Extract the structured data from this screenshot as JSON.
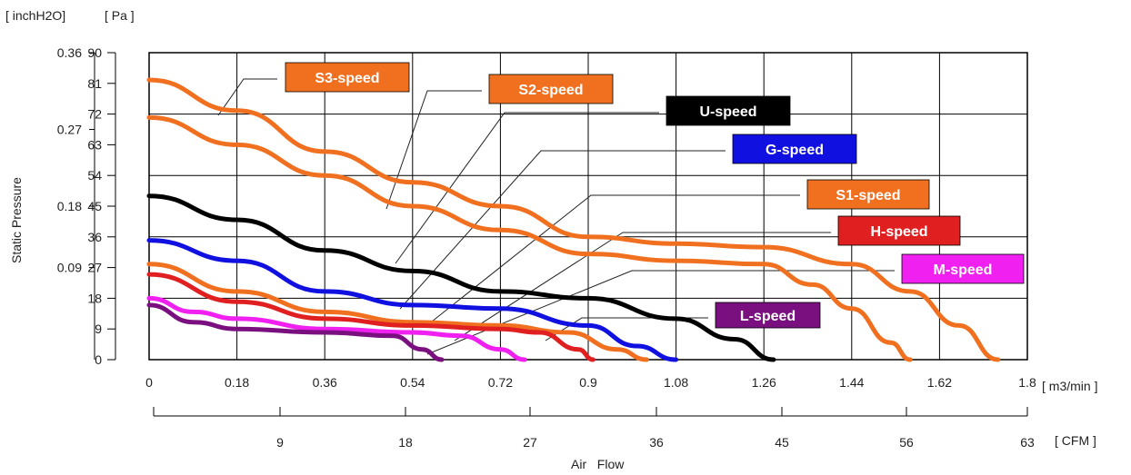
{
  "chart_data": {
    "type": "line",
    "ylabel": "Static Pressure",
    "xlabel": "Air   Flow",
    "y_unit_left": "[ inchH2O]",
    "y_unit_right": "[ Pa ]",
    "x_unit_top": "[ m3/min ]",
    "x_unit_bottom": "[ CFM ]",
    "xlim": [
      0,
      1.8
    ],
    "ylim": [
      0,
      90
    ],
    "grid": true,
    "x_ticks": [
      "0",
      "0.18",
      "0.36",
      "0.54",
      "0.72",
      "0.9",
      "1.08",
      "1.26",
      "1.44",
      "1.62",
      "1.8"
    ],
    "pa_ticks": [
      "0",
      "9",
      "18",
      "27",
      "36",
      "45",
      "54",
      "63",
      "72",
      "81",
      "90"
    ],
    "inh2o_ticks": [
      "0.09",
      "0.18",
      "0.27",
      "0.36"
    ],
    "cfm_ticks": [
      "9",
      "18",
      "27",
      "36",
      "45",
      "56",
      "63"
    ],
    "series": [
      {
        "name": "S3-speed",
        "color": "#f07020",
        "x": [
          0,
          0.18,
          0.36,
          0.54,
          0.72,
          0.9,
          1.08,
          1.26,
          1.44,
          1.56,
          1.66,
          1.74
        ],
        "y": [
          82,
          73,
          61,
          52,
          45,
          36,
          34,
          33,
          28,
          20,
          10,
          0
        ]
      },
      {
        "name": "S2-speed",
        "color": "#f07020",
        "x": [
          0,
          0.18,
          0.36,
          0.54,
          0.72,
          0.9,
          1.08,
          1.26,
          1.36,
          1.44,
          1.52,
          1.56
        ],
        "y": [
          71,
          63,
          54,
          45,
          38,
          31,
          29,
          28,
          22,
          15,
          5,
          0
        ]
      },
      {
        "name": "U-speed",
        "color": "#000000",
        "x": [
          0,
          0.18,
          0.36,
          0.54,
          0.72,
          0.9,
          1.08,
          1.2,
          1.28
        ],
        "y": [
          48,
          41,
          32,
          26,
          20,
          18,
          12,
          6,
          0
        ]
      },
      {
        "name": "G-speed",
        "color": "#1010e0",
        "x": [
          0,
          0.18,
          0.36,
          0.54,
          0.72,
          0.9,
          1.0,
          1.08
        ],
        "y": [
          35,
          29,
          20,
          16,
          15,
          10,
          4,
          0
        ]
      },
      {
        "name": "S1-speed",
        "color": "#f07020",
        "x": [
          0,
          0.18,
          0.36,
          0.54,
          0.72,
          0.86,
          0.96,
          1.02
        ],
        "y": [
          28,
          20,
          14,
          11,
          10,
          8,
          3,
          0
        ]
      },
      {
        "name": "H-speed",
        "color": "#e02020",
        "x": [
          0,
          0.18,
          0.36,
          0.54,
          0.72,
          0.8,
          0.88,
          0.91
        ],
        "y": [
          25,
          17,
          12,
          10,
          9,
          8,
          3,
          0
        ]
      },
      {
        "name": "M-speed",
        "color": "#f020f0",
        "x": [
          0,
          0.09,
          0.18,
          0.36,
          0.54,
          0.64,
          0.72,
          0.77
        ],
        "y": [
          18,
          14,
          12,
          9,
          8,
          7,
          3,
          0
        ]
      },
      {
        "name": "L-speed",
        "color": "#7a1080",
        "x": [
          0,
          0.09,
          0.18,
          0.36,
          0.5,
          0.56,
          0.6
        ],
        "y": [
          16,
          11,
          9,
          8,
          7,
          3,
          0
        ]
      }
    ]
  }
}
